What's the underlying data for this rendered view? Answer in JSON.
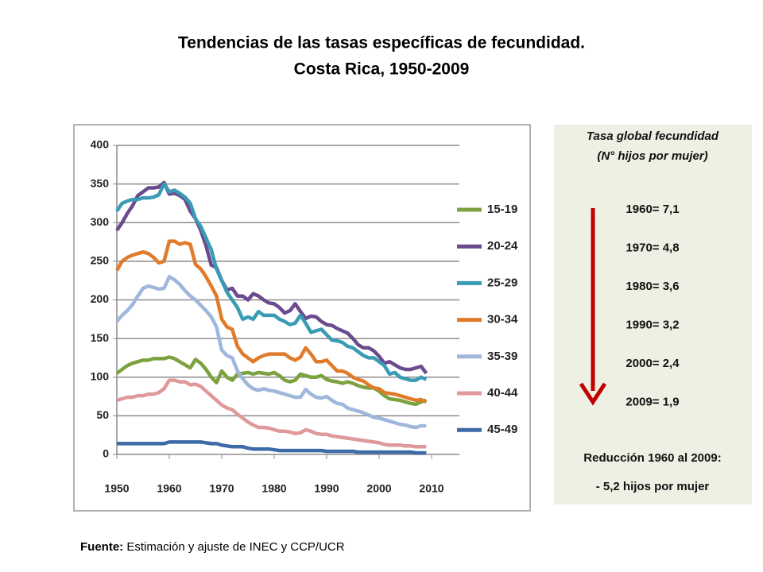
{
  "chart_data": {
    "type": "line",
    "title": "Tendencias de las tasas específicas de fecundidad.",
    "subtitle": "Costa Rica, 1950-2009",
    "x": [
      1950,
      1951,
      1952,
      1953,
      1954,
      1955,
      1956,
      1957,
      1958,
      1959,
      1960,
      1961,
      1962,
      1963,
      1964,
      1965,
      1966,
      1967,
      1968,
      1969,
      1970,
      1971,
      1972,
      1973,
      1974,
      1975,
      1976,
      1977,
      1978,
      1979,
      1980,
      1981,
      1982,
      1983,
      1984,
      1985,
      1986,
      1987,
      1988,
      1989,
      1990,
      1991,
      1992,
      1993,
      1994,
      1995,
      1996,
      1997,
      1998,
      1999,
      2000,
      2001,
      2002,
      2003,
      2004,
      2005,
      2006,
      2007,
      2008,
      2009
    ],
    "xlim": [
      1950,
      2010
    ],
    "xticks": [
      1950,
      1960,
      1970,
      1980,
      1990,
      2000,
      2010
    ],
    "ylim": [
      0,
      400
    ],
    "yticks": [
      0,
      50,
      100,
      150,
      200,
      250,
      300,
      350,
      400
    ],
    "grid": true,
    "legend": "right",
    "series": [
      {
        "name": "15-19",
        "color": "#7ba23f",
        "values": [
          105,
          110,
          115,
          118,
          120,
          122,
          122,
          124,
          124,
          124,
          126,
          124,
          120,
          116,
          112,
          123,
          118,
          110,
          100,
          93,
          108,
          100,
          96,
          104,
          105,
          106,
          104,
          106,
          105,
          104,
          106,
          102,
          96,
          94,
          96,
          104,
          102,
          100,
          100,
          102,
          97,
          95,
          94,
          92,
          94,
          92,
          89,
          87,
          86,
          86,
          82,
          76,
          72,
          71,
          70,
          68,
          66,
          65,
          68,
          70
        ]
      },
      {
        "name": "20-24",
        "color": "#6b4a8e",
        "values": [
          290,
          300,
          312,
          322,
          335,
          340,
          345,
          345,
          346,
          352,
          337,
          338,
          335,
          330,
          315,
          305,
          290,
          270,
          245,
          242,
          225,
          213,
          215,
          205,
          205,
          200,
          208,
          205,
          200,
          196,
          195,
          190,
          183,
          186,
          195,
          185,
          176,
          179,
          178,
          172,
          168,
          167,
          163,
          160,
          157,
          150,
          142,
          138,
          138,
          134,
          127,
          118,
          120,
          116,
          112,
          110,
          110,
          112,
          114,
          105
        ]
      },
      {
        "name": "25-29",
        "color": "#3a9bb5",
        "values": [
          315,
          325,
          328,
          330,
          330,
          332,
          332,
          333,
          336,
          350,
          340,
          342,
          338,
          333,
          325,
          305,
          295,
          280,
          265,
          240,
          225,
          210,
          200,
          190,
          175,
          178,
          175,
          185,
          180,
          180,
          180,
          175,
          172,
          168,
          170,
          180,
          170,
          158,
          160,
          162,
          155,
          148,
          147,
          145,
          140,
          138,
          133,
          128,
          125,
          125,
          120,
          115,
          104,
          106,
          100,
          98,
          96,
          96,
          100,
          97
        ]
      },
      {
        "name": "30-34",
        "color": "#e07b2c",
        "values": [
          238,
          250,
          255,
          258,
          260,
          262,
          260,
          255,
          248,
          250,
          276,
          276,
          272,
          274,
          272,
          246,
          240,
          230,
          218,
          205,
          175,
          165,
          162,
          140,
          130,
          125,
          120,
          125,
          128,
          130,
          130,
          130,
          130,
          125,
          122,
          126,
          138,
          130,
          120,
          120,
          122,
          115,
          108,
          108,
          105,
          100,
          97,
          95,
          90,
          86,
          85,
          80,
          79,
          78,
          76,
          74,
          72,
          70,
          71,
          68
        ]
      },
      {
        "name": "35-39",
        "color": "#9fb6dd",
        "values": [
          172,
          180,
          186,
          194,
          205,
          215,
          218,
          216,
          214,
          215,
          230,
          226,
          220,
          212,
          205,
          200,
          193,
          186,
          178,
          165,
          135,
          128,
          125,
          108,
          98,
          90,
          85,
          83,
          85,
          83,
          82,
          80,
          78,
          76,
          74,
          74,
          84,
          78,
          74,
          73,
          75,
          70,
          66,
          65,
          60,
          58,
          56,
          54,
          51,
          48,
          47,
          45,
          43,
          41,
          39,
          38,
          36,
          35,
          37,
          37
        ]
      },
      {
        "name": "40-44",
        "color": "#e0999a",
        "values": [
          70,
          72,
          74,
          74,
          76,
          76,
          78,
          78,
          80,
          85,
          96,
          96,
          94,
          94,
          90,
          91,
          88,
          82,
          76,
          70,
          64,
          60,
          58,
          52,
          47,
          42,
          38,
          35,
          35,
          34,
          32,
          30,
          30,
          29,
          27,
          28,
          32,
          30,
          27,
          26,
          26,
          24,
          23,
          22,
          21,
          20,
          19,
          18,
          17,
          16,
          15,
          13,
          12,
          12,
          12,
          11,
          11,
          10,
          10,
          10
        ]
      },
      {
        "name": "45-49",
        "color": "#3e6aa8",
        "values": [
          14,
          14,
          14,
          14,
          14,
          14,
          14,
          14,
          14,
          14,
          16,
          16,
          16,
          16,
          16,
          16,
          16,
          15,
          14,
          14,
          12,
          11,
          10,
          10,
          10,
          8,
          7,
          7,
          7,
          7,
          6,
          5,
          5,
          5,
          5,
          5,
          5,
          5,
          5,
          5,
          4,
          4,
          4,
          4,
          4,
          4,
          3,
          3,
          3,
          3,
          3,
          3,
          3,
          3,
          3,
          3,
          3,
          2,
          2,
          2
        ]
      }
    ]
  },
  "panel": {
    "title": "Tasa global fecundidad",
    "subtitle": "(N° hijos por mujer)",
    "items": [
      "1960= 7,1",
      "1970= 4,8",
      "1980= 3,6",
      "1990= 3,2",
      "2000= 2,4",
      "2009= 1,9"
    ],
    "reduction_title": "Reducción 1960 al 2009:",
    "reduction_text": "- 5,2 hijos por mujer"
  },
  "source": {
    "label": "Fuente:",
    "text": "Estimación y ajuste de INEC y CCP/UCR"
  }
}
